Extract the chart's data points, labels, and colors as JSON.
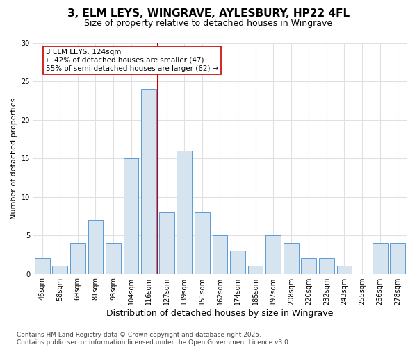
{
  "title_line1": "3, ELM LEYS, WINGRAVE, AYLESBURY, HP22 4FL",
  "title_line2": "Size of property relative to detached houses in Wingrave",
  "xlabel": "Distribution of detached houses by size in Wingrave",
  "ylabel": "Number of detached properties",
  "bar_labels": [
    "46sqm",
    "58sqm",
    "69sqm",
    "81sqm",
    "93sqm",
    "104sqm",
    "116sqm",
    "127sqm",
    "139sqm",
    "151sqm",
    "162sqm",
    "174sqm",
    "185sqm",
    "197sqm",
    "208sqm",
    "220sqm",
    "232sqm",
    "243sqm",
    "255sqm",
    "266sqm",
    "278sqm"
  ],
  "bar_heights": [
    2,
    1,
    4,
    7,
    4,
    15,
    24,
    8,
    16,
    8,
    5,
    3,
    1,
    5,
    4,
    2,
    2,
    1,
    0,
    4,
    4
  ],
  "bar_color": "#d6e4f0",
  "bar_edge_color": "#5b9bd5",
  "vline_x_index": 6.5,
  "vline_color": "#cc0000",
  "annotation_text": "3 ELM LEYS: 124sqm\n← 42% of detached houses are smaller (47)\n55% of semi-detached houses are larger (62) →",
  "annotation_box_color": "#ffffff",
  "annotation_box_edge": "#cc0000",
  "ylim": [
    0,
    30
  ],
  "yticks": [
    0,
    5,
    10,
    15,
    20,
    25,
    30
  ],
  "bg_color": "#ffffff",
  "plot_bg_color": "#ffffff",
  "grid_color": "#e0e0e0",
  "footer_text": "Contains HM Land Registry data © Crown copyright and database right 2025.\nContains public sector information licensed under the Open Government Licence v3.0.",
  "title1_fontsize": 11,
  "title2_fontsize": 9,
  "xlabel_fontsize": 9,
  "ylabel_fontsize": 8,
  "tick_fontsize": 7,
  "annotation_fontsize": 7.5,
  "footer_fontsize": 6.5
}
